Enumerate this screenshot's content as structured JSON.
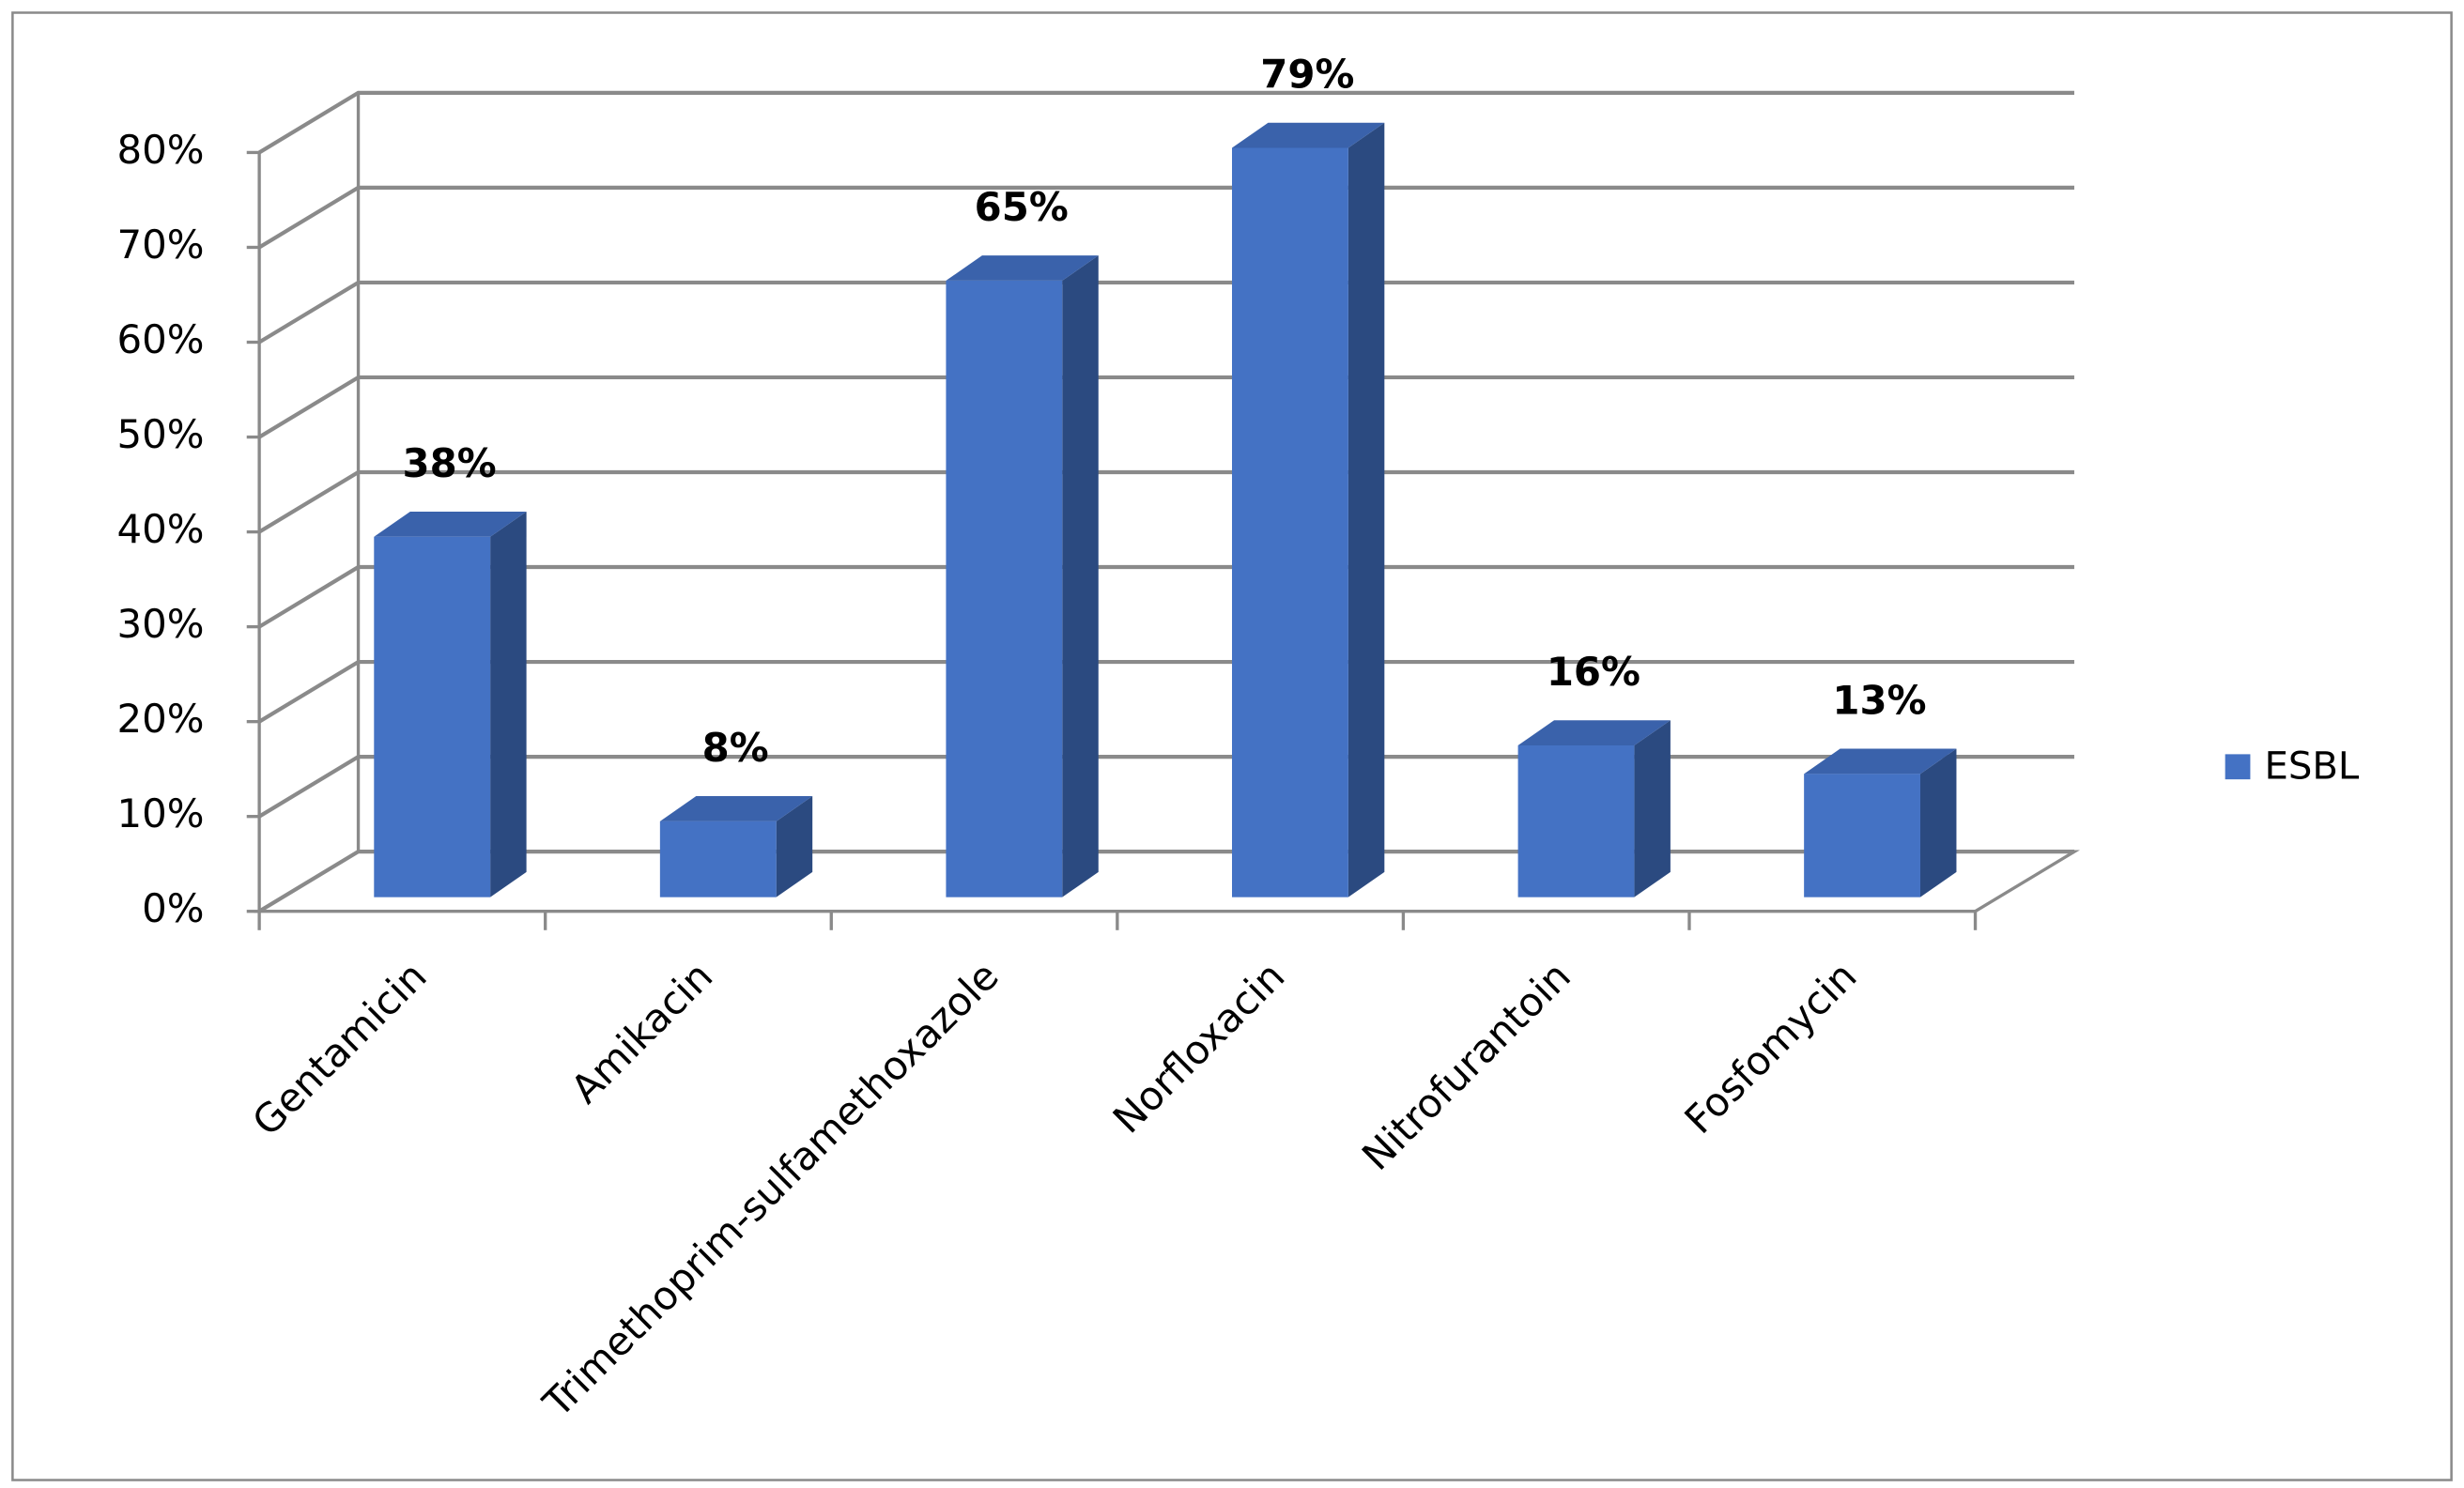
{
  "chart_data": {
    "type": "bar3d",
    "categories": [
      "Gentamicin",
      "Amikacin",
      "Trimethoprim-sulfamethoxazole",
      "Norfloxacin",
      "Nitrofurantoin",
      "Fosfomycin"
    ],
    "series": [
      {
        "name": "ESBL",
        "color": "#4472c4",
        "values": [
          38,
          8,
          65,
          79,
          16,
          13
        ],
        "value_labels": [
          "38%",
          "8%",
          "65%",
          "79%",
          "16%",
          "13%"
        ]
      }
    ],
    "ylim": [
      0,
      80
    ],
    "yticks": [
      {
        "value": 0,
        "label": "0%"
      },
      {
        "value": 10,
        "label": "10%"
      },
      {
        "value": 20,
        "label": "20%"
      },
      {
        "value": 30,
        "label": "30%"
      },
      {
        "value": 40,
        "label": "40%"
      },
      {
        "value": 50,
        "label": "50%"
      },
      {
        "value": 60,
        "label": "60%"
      },
      {
        "value": 70,
        "label": "70%"
      },
      {
        "value": 80,
        "label": "80%"
      }
    ],
    "grid": true,
    "legend": "right"
  }
}
